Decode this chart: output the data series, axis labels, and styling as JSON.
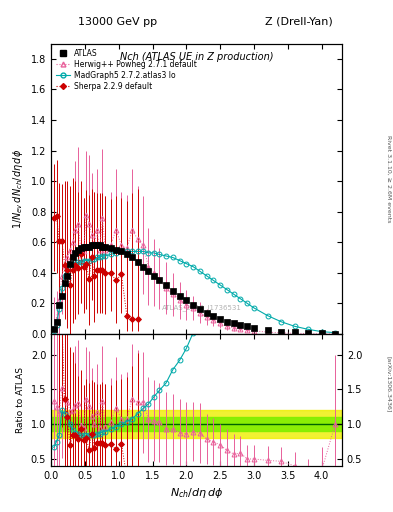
{
  "title_top": "13000 GeV pp",
  "title_right": "Z (Drell-Yan)",
  "plot_title": "Nch (ATLAS UE in Z production)",
  "xlabel": "$N_{ch}/d\\eta\\,d\\phi$",
  "ylabel_main": "$1/N_{ev}\\,dN_{ch}/d\\eta\\,d\\phi$",
  "ylabel_ratio": "Ratio to ATLAS",
  "xlim": [
    0,
    4.3
  ],
  "ylim_main": [
    0,
    1.9
  ],
  "ylim_ratio": [
    0.4,
    2.3
  ],
  "yticks_main": [
    0.0,
    0.2,
    0.4,
    0.6,
    0.8,
    1.0,
    1.2,
    1.4,
    1.6,
    1.8
  ],
  "yticks_ratio": [
    0.5,
    1.0,
    1.5,
    2.0
  ],
  "atlas_x": [
    0.04,
    0.08,
    0.12,
    0.16,
    0.2,
    0.24,
    0.28,
    0.32,
    0.36,
    0.4,
    0.44,
    0.48,
    0.52,
    0.56,
    0.6,
    0.64,
    0.68,
    0.72,
    0.76,
    0.8,
    0.88,
    0.96,
    1.04,
    1.12,
    1.2,
    1.28,
    1.36,
    1.44,
    1.52,
    1.6,
    1.7,
    1.8,
    1.9,
    2.0,
    2.1,
    2.2,
    2.3,
    2.4,
    2.5,
    2.6,
    2.7,
    2.8,
    2.9,
    3.0,
    3.2,
    3.4,
    3.6,
    3.8,
    4.0,
    4.2
  ],
  "atlas_y": [
    0.03,
    0.08,
    0.19,
    0.25,
    0.33,
    0.38,
    0.46,
    0.5,
    0.53,
    0.55,
    0.56,
    0.57,
    0.57,
    0.57,
    0.58,
    0.58,
    0.58,
    0.58,
    0.57,
    0.57,
    0.56,
    0.55,
    0.54,
    0.52,
    0.5,
    0.47,
    0.44,
    0.41,
    0.38,
    0.35,
    0.32,
    0.28,
    0.25,
    0.22,
    0.19,
    0.16,
    0.14,
    0.12,
    0.1,
    0.08,
    0.07,
    0.06,
    0.05,
    0.04,
    0.025,
    0.015,
    0.01,
    0.006,
    0.003,
    0.001
  ],
  "atlas_yerr": [
    0.004,
    0.008,
    0.015,
    0.018,
    0.018,
    0.018,
    0.018,
    0.018,
    0.018,
    0.018,
    0.018,
    0.018,
    0.018,
    0.018,
    0.018,
    0.018,
    0.018,
    0.018,
    0.018,
    0.018,
    0.018,
    0.018,
    0.018,
    0.018,
    0.018,
    0.017,
    0.016,
    0.015,
    0.014,
    0.013,
    0.012,
    0.01,
    0.009,
    0.008,
    0.007,
    0.006,
    0.005,
    0.004,
    0.004,
    0.003,
    0.003,
    0.002,
    0.002,
    0.002,
    0.001,
    0.001,
    0.001,
    0.001,
    0.001,
    0.001
  ],
  "herwig_x": [
    0.04,
    0.08,
    0.12,
    0.16,
    0.2,
    0.24,
    0.28,
    0.32,
    0.36,
    0.4,
    0.44,
    0.48,
    0.52,
    0.56,
    0.6,
    0.64,
    0.68,
    0.72,
    0.76,
    0.8,
    0.88,
    0.96,
    1.04,
    1.12,
    1.2,
    1.28,
    1.36,
    1.44,
    1.52,
    1.6,
    1.7,
    1.8,
    1.9,
    2.0,
    2.1,
    2.2,
    2.3,
    2.4,
    2.5,
    2.6,
    2.7,
    2.8,
    2.9,
    3.0,
    3.2,
    3.4,
    3.6,
    3.8,
    4.0,
    4.2
  ],
  "herwig_y": [
    0.04,
    0.1,
    0.22,
    0.38,
    0.45,
    0.5,
    0.55,
    0.6,
    0.68,
    0.72,
    0.55,
    0.54,
    0.78,
    0.72,
    0.65,
    0.58,
    0.68,
    0.55,
    0.76,
    0.55,
    0.58,
    0.68,
    0.58,
    0.56,
    0.68,
    0.62,
    0.58,
    0.44,
    0.4,
    0.36,
    0.3,
    0.26,
    0.22,
    0.19,
    0.17,
    0.14,
    0.11,
    0.09,
    0.07,
    0.05,
    0.04,
    0.035,
    0.025,
    0.02,
    0.012,
    0.007,
    0.004,
    0.002,
    0.001,
    0.001
  ],
  "herwig_yerr_up": [
    0.2,
    0.18,
    0.22,
    0.25,
    0.28,
    0.3,
    0.35,
    0.4,
    0.45,
    0.5,
    0.35,
    0.35,
    0.42,
    0.45,
    0.4,
    0.35,
    0.4,
    0.35,
    0.45,
    0.35,
    0.35,
    0.4,
    0.35,
    0.35,
    0.4,
    0.35,
    0.32,
    0.25,
    0.22,
    0.2,
    0.17,
    0.14,
    0.12,
    0.1,
    0.08,
    0.07,
    0.05,
    0.04,
    0.03,
    0.025,
    0.02,
    0.015,
    0.01,
    0.008,
    0.005,
    0.003,
    0.002,
    0.001,
    0.001,
    0.001
  ],
  "madgraph_x": [
    0.04,
    0.08,
    0.12,
    0.16,
    0.2,
    0.24,
    0.28,
    0.32,
    0.36,
    0.4,
    0.44,
    0.48,
    0.52,
    0.56,
    0.6,
    0.64,
    0.68,
    0.72,
    0.76,
    0.8,
    0.88,
    0.96,
    1.04,
    1.12,
    1.2,
    1.28,
    1.36,
    1.44,
    1.52,
    1.6,
    1.7,
    1.8,
    1.9,
    2.0,
    2.1,
    2.2,
    2.3,
    2.4,
    2.5,
    2.6,
    2.7,
    2.8,
    2.9,
    3.0,
    3.2,
    3.4,
    3.6,
    3.8,
    4.0,
    4.2
  ],
  "madgraph_y": [
    0.02,
    0.06,
    0.16,
    0.3,
    0.38,
    0.42,
    0.46,
    0.46,
    0.46,
    0.47,
    0.47,
    0.48,
    0.48,
    0.48,
    0.49,
    0.49,
    0.5,
    0.5,
    0.51,
    0.51,
    0.52,
    0.53,
    0.54,
    0.54,
    0.54,
    0.54,
    0.54,
    0.53,
    0.53,
    0.52,
    0.51,
    0.5,
    0.48,
    0.46,
    0.44,
    0.41,
    0.38,
    0.35,
    0.32,
    0.29,
    0.26,
    0.23,
    0.2,
    0.17,
    0.12,
    0.08,
    0.05,
    0.03,
    0.015,
    0.008
  ],
  "sherpa_x": [
    0.04,
    0.08,
    0.12,
    0.16,
    0.2,
    0.24,
    0.28,
    0.32,
    0.36,
    0.4,
    0.44,
    0.48,
    0.52,
    0.56,
    0.6,
    0.64,
    0.68,
    0.72,
    0.76,
    0.8,
    0.88,
    0.96,
    1.04,
    1.12,
    1.2,
    1.28
  ],
  "sherpa_y": [
    0.76,
    0.77,
    0.61,
    0.61,
    0.45,
    0.42,
    0.32,
    0.42,
    0.45,
    0.43,
    0.52,
    0.44,
    0.46,
    0.36,
    0.5,
    0.38,
    0.42,
    0.42,
    0.42,
    0.4,
    0.4,
    0.35,
    0.39,
    0.12,
    0.1,
    0.1
  ],
  "sherpa_yerr_up": [
    0.35,
    0.37,
    0.38,
    0.37,
    0.55,
    0.58,
    0.65,
    0.6,
    0.55,
    0.5,
    0.48,
    0.45,
    0.48,
    0.55,
    0.45,
    0.55,
    0.5,
    0.5,
    0.5,
    0.5,
    0.48,
    0.55,
    0.5,
    0.75,
    0.82,
    0.85
  ],
  "sherpa_yerr_dn": [
    0.35,
    0.37,
    0.38,
    0.37,
    0.35,
    0.38,
    0.32,
    0.35,
    0.35,
    0.3,
    0.32,
    0.3,
    0.3,
    0.3,
    0.28,
    0.3,
    0.28,
    0.28,
    0.28,
    0.27,
    0.25,
    0.28,
    0.25,
    0.1,
    0.08,
    0.08
  ],
  "color_atlas": "#000000",
  "color_herwig": "#e8609a",
  "color_madgraph": "#00aaaa",
  "color_sherpa": "#cc0000",
  "color_band_green": "#80ee00",
  "color_band_yellow": "#eeee00",
  "legend_labels": [
    "ATLAS",
    "Herwig++ Powheg 2.7.1 default",
    "MadGraph5 2.7.2.atlas3 lo",
    "Sherpa 2.2.9 default"
  ]
}
